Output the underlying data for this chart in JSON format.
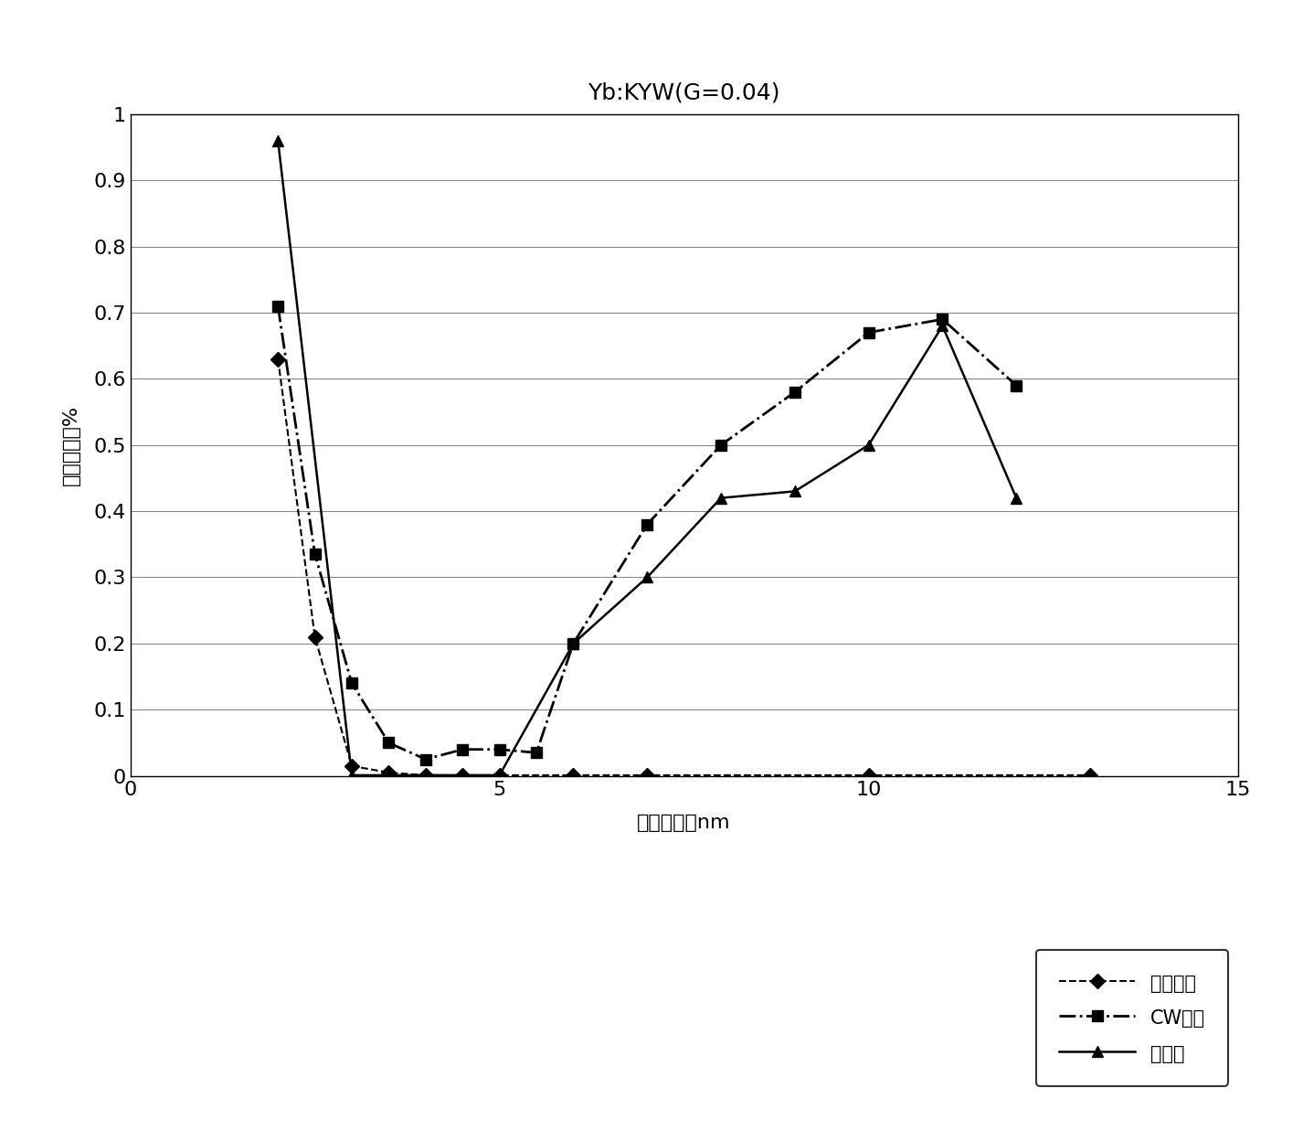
{
  "title": "Yb:KYW(G=0.04)",
  "xlabel": "脉冲波段，nm",
  "ylabel": "增益优先度%",
  "xlim": [
    0,
    15
  ],
  "ylim": [
    0,
    1.0
  ],
  "ytick_labels": [
    "0",
    "0.1",
    "0.2",
    "0.3",
    "0.4",
    "0.5",
    "0.6",
    "0.7",
    "0.8",
    "0.9",
    "1"
  ],
  "yticks": [
    0,
    0.1,
    0.2,
    0.3,
    0.4,
    0.5,
    0.6,
    0.7,
    0.8,
    0.9,
    1.0
  ],
  "xticks": [
    0,
    5,
    10,
    15
  ],
  "series": [
    {
      "label": "移位脉冲",
      "x": [
        2,
        2.5,
        3,
        3.5,
        4,
        4.5,
        5,
        6,
        7,
        10,
        13
      ],
      "y": [
        0.63,
        0.21,
        0.015,
        0.005,
        0.001,
        0.001,
        0.001,
        0.001,
        0.001,
        0.001,
        0.001
      ],
      "color": "#000000",
      "linestyle": "dashed",
      "linewidth": 1.5,
      "marker": "D",
      "markersize": 8,
      "markerfacecolor": "#000000",
      "zorder": 3
    },
    {
      "label": "CW背景",
      "x": [
        2,
        2.5,
        3,
        3.5,
        4,
        4.5,
        5,
        5.5,
        6,
        7,
        8,
        9,
        10,
        11,
        12
      ],
      "y": [
        0.71,
        0.335,
        0.14,
        0.05,
        0.025,
        0.04,
        0.04,
        0.035,
        0.2,
        0.38,
        0.5,
        0.58,
        0.67,
        0.69,
        0.59
      ],
      "color": "#000000",
      "linestyle": "dashdot",
      "linewidth": 2.0,
      "marker": "s",
      "markersize": 9,
      "markerfacecolor": "#000000",
      "zorder": 2
    },
    {
      "label": "双脉冲",
      "x": [
        2,
        3,
        4,
        5,
        6,
        7,
        8,
        9,
        10,
        11,
        12
      ],
      "y": [
        0.96,
        0.001,
        0.001,
        0.001,
        0.2,
        0.3,
        0.42,
        0.43,
        0.5,
        0.68,
        0.42
      ],
      "color": "#000000",
      "linestyle": "solid",
      "linewidth": 1.8,
      "marker": "^",
      "markersize": 9,
      "markerfacecolor": "#000000",
      "zorder": 1
    }
  ],
  "background_color": "#ffffff",
  "grid_color": "#888888"
}
